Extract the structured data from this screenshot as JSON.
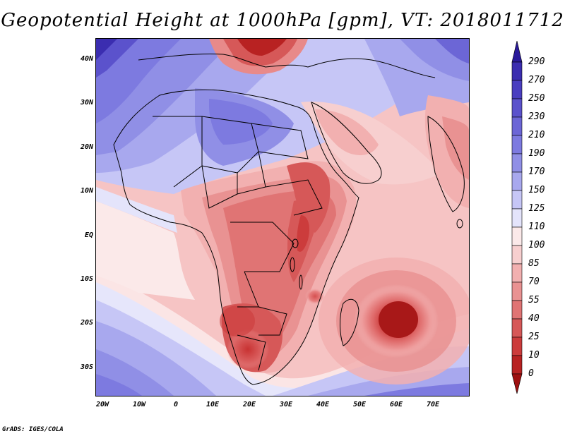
{
  "title": "Geopotential Height at 1000hPa [gpm], VT: 2018011712",
  "footer": "GrADS: IGES/COLA",
  "map": {
    "lat_labels": [
      "40N",
      "30N",
      "20N",
      "10N",
      "EQ",
      "10S",
      "20S",
      "30S"
    ],
    "lon_labels": [
      "20W",
      "10W",
      "0",
      "10E",
      "20E",
      "30E",
      "40E",
      "50E",
      "60E",
      "70E"
    ]
  },
  "colorbar": {
    "levels": [
      "290",
      "270",
      "250",
      "230",
      "210",
      "190",
      "170",
      "150",
      "125",
      "110",
      "100",
      "85",
      "70",
      "55",
      "40",
      "25",
      "10",
      "0"
    ],
    "colors": [
      "#2a1a9a",
      "#3b2db0",
      "#4a3ec0",
      "#5b52cc",
      "#6c66d6",
      "#7d7ae0",
      "#908fe6",
      "#a8a8ee",
      "#c6c6f6",
      "#e4e4fb",
      "#fbe9e9",
      "#f7cfcf",
      "#f2b0b0",
      "#e99292",
      "#e07474",
      "#d65858",
      "#cc3c3c",
      "#b82222",
      "#9e1010"
    ]
  }
}
